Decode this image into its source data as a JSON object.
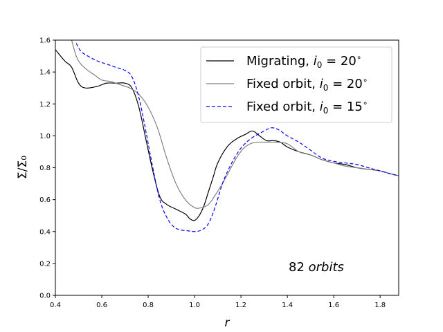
{
  "chart_data": {
    "type": "line",
    "title": "",
    "xlabel": "r",
    "ylabel": "Σ/Σ₀",
    "xlim": [
      0.4,
      1.88
    ],
    "ylim": [
      0.0,
      1.6
    ],
    "xticks": [
      0.4,
      0.6,
      0.8,
      1.0,
      1.2,
      1.4,
      1.6,
      1.8
    ],
    "xtick_labels": [
      "0.4",
      "0.6",
      "0.8",
      "1.0",
      "1.2",
      "1.4",
      "1.6",
      "1.8"
    ],
    "yticks": [
      0.0,
      0.2,
      0.4,
      0.6,
      0.8,
      1.0,
      1.2,
      1.4,
      1.6
    ],
    "ytick_labels": [
      "0.0",
      "0.2",
      "0.4",
      "0.6",
      "0.8",
      "1.0",
      "1.2",
      "1.4",
      "1.6"
    ],
    "legend_position": "top-right",
    "annotation": {
      "number": "82",
      "text": "orbits"
    },
    "series": [
      {
        "name": "Migrating, i₀ = 20°",
        "legend_prefix": "Migrating, ",
        "i0_value": "20",
        "color": "#000000",
        "style": "solid",
        "x": [
          0.4,
          0.44,
          0.47,
          0.5,
          0.53,
          0.58,
          0.62,
          0.66,
          0.7,
          0.73,
          0.76,
          0.79,
          0.82,
          0.85,
          0.88,
          0.92,
          0.96,
          0.98,
          1.0,
          1.02,
          1.04,
          1.06,
          1.08,
          1.1,
          1.14,
          1.18,
          1.22,
          1.25,
          1.28,
          1.31,
          1.34,
          1.37,
          1.4,
          1.45,
          1.5,
          1.55,
          1.6,
          1.65,
          1.7,
          1.75,
          1.8,
          1.85,
          1.88
        ],
        "y": [
          1.54,
          1.47,
          1.43,
          1.33,
          1.3,
          1.31,
          1.33,
          1.33,
          1.33,
          1.3,
          1.18,
          0.98,
          0.78,
          0.62,
          0.57,
          0.54,
          0.51,
          0.48,
          0.47,
          0.5,
          0.56,
          0.65,
          0.74,
          0.83,
          0.93,
          0.98,
          1.01,
          1.03,
          1.0,
          0.97,
          0.97,
          0.96,
          0.93,
          0.9,
          0.88,
          0.85,
          0.83,
          0.82,
          0.8,
          0.79,
          0.78,
          0.76,
          0.75
        ]
      },
      {
        "name": "Fixed orbit, i₀ = 20°",
        "legend_prefix": "Fixed orbit, ",
        "i0_value": "20",
        "color": "#808080",
        "style": "solid",
        "x": [
          0.47,
          0.49,
          0.51,
          0.54,
          0.57,
          0.6,
          0.64,
          0.68,
          0.72,
          0.76,
          0.8,
          0.84,
          0.88,
          0.92,
          0.96,
          1.0,
          1.03,
          1.06,
          1.09,
          1.12,
          1.15,
          1.18,
          1.21,
          1.24,
          1.27,
          1.3,
          1.35,
          1.4,
          1.45,
          1.5,
          1.55,
          1.6,
          1.65,
          1.7,
          1.75,
          1.8,
          1.85,
          1.88
        ],
        "y": [
          1.6,
          1.5,
          1.45,
          1.41,
          1.38,
          1.35,
          1.34,
          1.32,
          1.3,
          1.26,
          1.18,
          1.05,
          0.86,
          0.7,
          0.6,
          0.55,
          0.55,
          0.57,
          0.63,
          0.7,
          0.78,
          0.86,
          0.92,
          0.95,
          0.96,
          0.96,
          0.96,
          0.95,
          0.9,
          0.88,
          0.85,
          0.83,
          0.81,
          0.8,
          0.79,
          0.78,
          0.76,
          0.75
        ]
      },
      {
        "name": "Fixed orbit, i₀ = 15°",
        "legend_prefix": "Fixed orbit, ",
        "i0_value": "15",
        "color": "#0000ff",
        "style": "dashed",
        "x": [
          0.49,
          0.51,
          0.54,
          0.58,
          0.62,
          0.66,
          0.7,
          0.73,
          0.76,
          0.79,
          0.82,
          0.85,
          0.88,
          0.91,
          0.94,
          0.97,
          1.0,
          1.03,
          1.06,
          1.09,
          1.12,
          1.15,
          1.18,
          1.21,
          1.25,
          1.3,
          1.33,
          1.36,
          1.4,
          1.45,
          1.5,
          1.55,
          1.6,
          1.65,
          1.7,
          1.75,
          1.8,
          1.85,
          1.88
        ],
        "y": [
          1.58,
          1.53,
          1.5,
          1.47,
          1.45,
          1.43,
          1.41,
          1.37,
          1.24,
          1.03,
          0.8,
          0.6,
          0.49,
          0.43,
          0.41,
          0.405,
          0.4,
          0.41,
          0.45,
          0.56,
          0.7,
          0.8,
          0.88,
          0.94,
          0.99,
          1.03,
          1.05,
          1.04,
          1.0,
          0.96,
          0.91,
          0.86,
          0.84,
          0.83,
          0.82,
          0.8,
          0.78,
          0.76,
          0.75
        ]
      }
    ]
  }
}
